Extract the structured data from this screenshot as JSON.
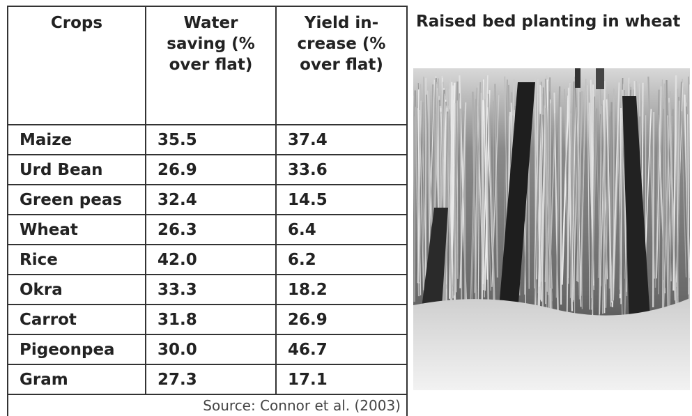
{
  "table": {
    "header": [
      "Crops",
      "Water saving (% over flat)",
      "Yield in- crease (% over flat)"
    ],
    "rows": [
      [
        "Maize",
        "35.5",
        "37.4"
      ],
      [
        "Urd Bean",
        "26.9",
        "33.6"
      ],
      [
        "Green peas",
        "32.4",
        "14.5"
      ],
      [
        "Wheat",
        "26.3",
        "6.4"
      ],
      [
        "Rice",
        "42.0",
        "6.2"
      ],
      [
        "Okra",
        "33.3",
        "18.2"
      ],
      [
        "Carrot",
        "31.8",
        "26.9"
      ],
      [
        "Pigeonpea",
        "30.0",
        "46.7"
      ],
      [
        "Gram",
        "27.3",
        "17.1"
      ]
    ],
    "source": "Source:  Connor et al. (2003)"
  },
  "figure": {
    "title": "Raised bed planting in wheat"
  }
}
